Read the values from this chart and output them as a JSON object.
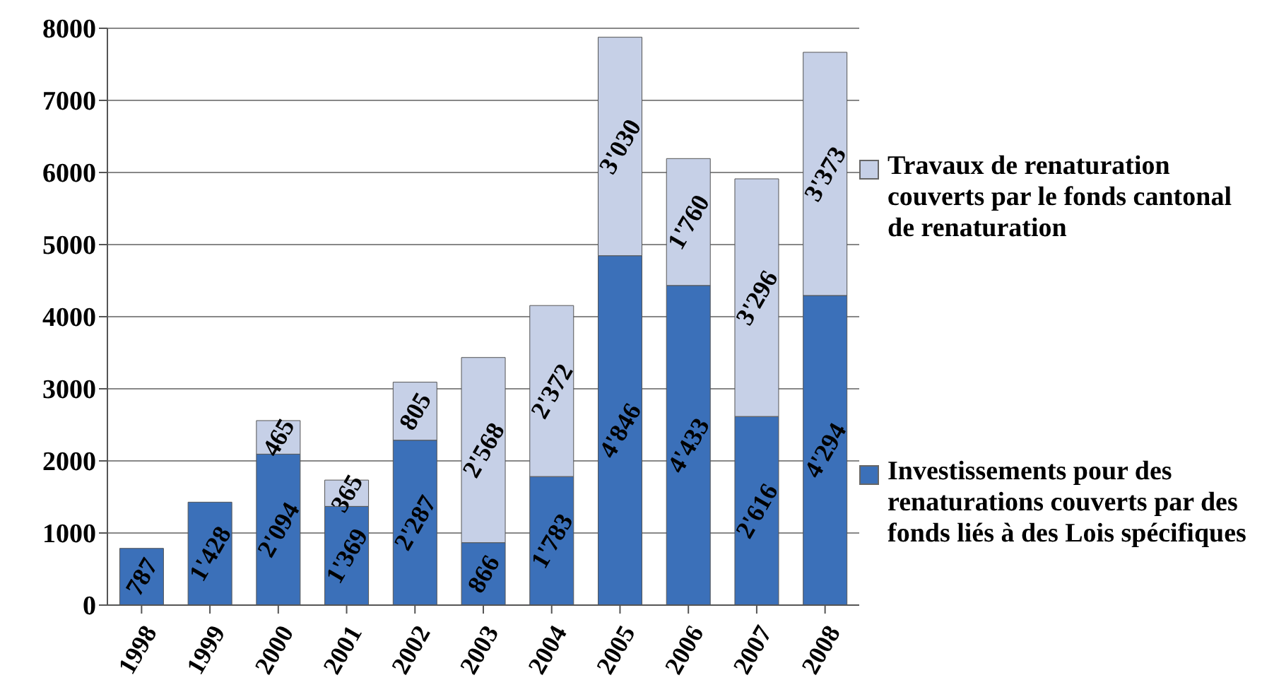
{
  "chart_data": {
    "type": "bar",
    "stacked": true,
    "categories": [
      "1998",
      "1999",
      "2000",
      "2001",
      "2002",
      "2003",
      "2004",
      "2005",
      "2006",
      "2007",
      "2008"
    ],
    "ylim": [
      0,
      8000
    ],
    "yticks": [
      0,
      1000,
      2000,
      3000,
      4000,
      5000,
      6000,
      7000,
      8000
    ],
    "grid": "y",
    "legend": "right",
    "series": [
      {
        "name": "Investissements pour des renaturations couverts par des fonds liés à des Lois spécifiques",
        "color": "#3b70b9",
        "values": [
          787,
          1428,
          2094,
          1369,
          2287,
          866,
          1783,
          4846,
          4433,
          2616,
          4294
        ],
        "value_labels": [
          "787",
          "1'428",
          "2'094",
          "1'369",
          "2'287",
          "866",
          "1'783",
          "4'846",
          "4'433",
          "2'616",
          "4'294"
        ]
      },
      {
        "name": "Travaux de renaturation couverts par le fonds cantonal de renaturation",
        "color": "#c6d0e7",
        "values": [
          null,
          null,
          465,
          365,
          805,
          2568,
          2372,
          3030,
          1760,
          3296,
          3373
        ],
        "value_labels": [
          null,
          null,
          "465",
          "365",
          "805",
          "2'568",
          "2'372",
          "3'030",
          "1'760",
          "3'296",
          "3'373"
        ]
      }
    ]
  }
}
